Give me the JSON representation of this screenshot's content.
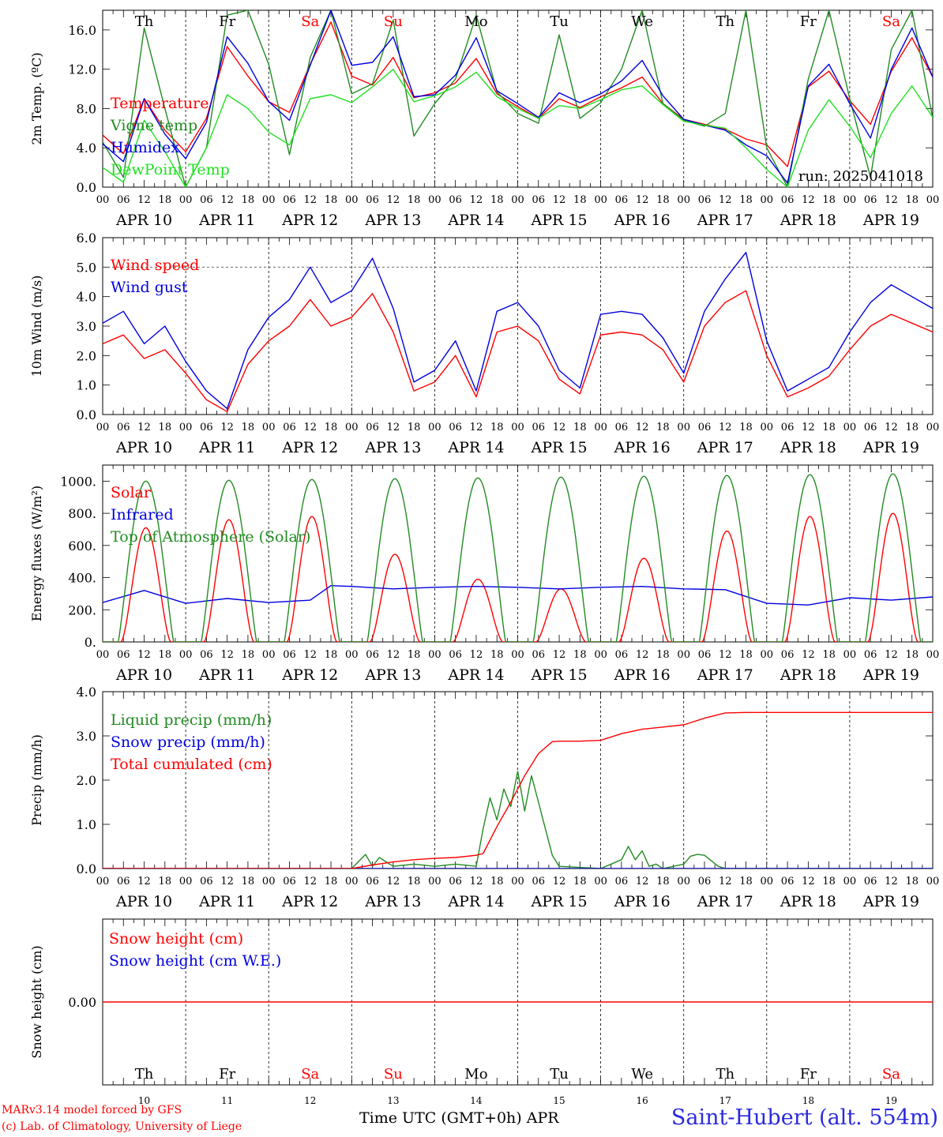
{
  "colors": {
    "temperature": "#ff0000",
    "vigne": "#228b22",
    "humidex": "#0000e0",
    "dewpoint": "#22e022",
    "wind": "#ff0000",
    "gust": "#0000e0",
    "solar": "#ff0000",
    "infrared": "#0000e0",
    "toa": "#228b22",
    "liquid": "#228b22",
    "snowp": "#0000e0",
    "cum": "#ff0000",
    "weekend": "#ff0000",
    "weekday": "#000000"
  },
  "days": [
    "Th",
    "Fr",
    "Sa",
    "Su",
    "Mo",
    "Tu",
    "We",
    "Th",
    "Fr",
    "Sa"
  ],
  "weekend_days": [
    2,
    3,
    9
  ],
  "dates": [
    "APR 10",
    "APR 11",
    "APR 12",
    "APR 13",
    "APR 14",
    "APR 15",
    "APR 16",
    "APR 17",
    "APR 18",
    "APR 19"
  ],
  "day_numbers": [
    "10",
    "11",
    "12",
    "13",
    "14",
    "15",
    "16",
    "17",
    "18",
    "19"
  ],
  "hour_ticks": [
    "00",
    "06",
    "12",
    "18"
  ],
  "footer": {
    "credit_line1": "MARv3.14 model forced by GFS",
    "credit_line2": "(c) Lab. of Climatology, University of Liege",
    "x_axis_label": "Time UTC (GMT+0h) APR",
    "station": "Saint-Hubert (alt. 554m)"
  },
  "chart_data": [
    {
      "type": "line",
      "ylabel": "2m Temp. (ºC)",
      "ylim": [
        0,
        18
      ],
      "yticks": [
        "0.0",
        "4.0",
        "8.0",
        "12.0",
        "16.0"
      ],
      "yticks_values": [
        0,
        4,
        8,
        12,
        16
      ],
      "annotation": "run: 2025041018",
      "x_unit": "hours since APR 10 00 UTC",
      "series": [
        {
          "name": "Temperature",
          "color_key": "temperature",
          "x": [
            0,
            6,
            12,
            18,
            24,
            30,
            36,
            42,
            48,
            54,
            60,
            66,
            72,
            78,
            84,
            90,
            96,
            102,
            108,
            114,
            120,
            126,
            132,
            138,
            144,
            150,
            156,
            162,
            168,
            174,
            180,
            186,
            192,
            198,
            204,
            210,
            216,
            222,
            228,
            234,
            240
          ],
          "y": [
            5.3,
            3.4,
            9.0,
            5.8,
            3.6,
            7.0,
            14.3,
            11.3,
            8.7,
            7.6,
            12.5,
            16.8,
            11.3,
            10.4,
            13.2,
            9.1,
            9.6,
            10.6,
            13.1,
            9.5,
            8.2,
            7.0,
            9.0,
            8.1,
            9.2,
            10.1,
            11.2,
            8.5,
            6.9,
            6.4,
            5.9,
            4.9,
            4.3,
            2.1,
            10.2,
            11.8,
            8.8,
            6.4,
            11.8,
            15.2,
            11.2
          ]
        },
        {
          "name": "Vigne temp",
          "color_key": "vigne",
          "x": [
            0,
            6,
            12,
            18,
            24,
            30,
            36,
            42,
            48,
            54,
            60,
            66,
            72,
            78,
            84,
            90,
            96,
            102,
            108,
            114,
            120,
            126,
            132,
            138,
            144,
            150,
            156,
            162,
            168,
            174,
            180,
            186,
            192,
            198,
            204,
            210,
            216,
            222,
            228,
            234,
            240
          ],
          "y": [
            4.6,
            1.0,
            16.2,
            8.0,
            0.0,
            4.0,
            17.5,
            18.0,
            12.5,
            3.3,
            13.2,
            18.0,
            9.5,
            10.5,
            17.0,
            5.2,
            8.5,
            11.0,
            17.5,
            9.7,
            7.5,
            6.5,
            15.5,
            7.0,
            8.6,
            12.0,
            18.0,
            8.5,
            6.8,
            6.2,
            7.5,
            18.0,
            4.0,
            0.0,
            11.0,
            18.0,
            9.0,
            1.0,
            14.0,
            18.0,
            7.0
          ]
        },
        {
          "name": "Humidex",
          "color_key": "humidex",
          "x": [
            0,
            6,
            12,
            18,
            24,
            30,
            36,
            42,
            48,
            54,
            60,
            66,
            72,
            78,
            84,
            90,
            96,
            102,
            108,
            114,
            120,
            126,
            132,
            138,
            144,
            150,
            156,
            162,
            168,
            174,
            180,
            186,
            192,
            198,
            204,
            210,
            216,
            222,
            228,
            234,
            240
          ],
          "y": [
            4.4,
            2.6,
            9.0,
            5.4,
            2.9,
            6.6,
            15.3,
            12.6,
            8.7,
            6.8,
            12.4,
            18.0,
            12.4,
            12.7,
            15.3,
            9.2,
            9.4,
            11.4,
            15.2,
            9.8,
            8.5,
            7.1,
            9.6,
            8.6,
            9.5,
            10.8,
            12.9,
            9.3,
            6.9,
            6.3,
            5.8,
            4.3,
            3.2,
            0.4,
            10.3,
            12.5,
            8.5,
            5.0,
            12.0,
            16.2,
            11.2
          ]
        },
        {
          "name": "DewPoint Temp",
          "color_key": "dewpoint",
          "x": [
            0,
            6,
            12,
            18,
            24,
            30,
            36,
            42,
            48,
            54,
            60,
            66,
            72,
            78,
            84,
            90,
            96,
            102,
            108,
            114,
            120,
            126,
            132,
            138,
            144,
            150,
            156,
            162,
            168,
            174,
            180,
            186,
            192,
            198,
            204,
            210,
            216,
            222,
            228,
            234,
            240
          ],
          "y": [
            2.0,
            0.5,
            6.8,
            3.6,
            0.0,
            4.0,
            9.4,
            8.0,
            5.6,
            4.3,
            9.0,
            9.4,
            8.6,
            10.2,
            12.0,
            8.7,
            9.3,
            10.2,
            11.7,
            9.2,
            8.0,
            7.0,
            8.3,
            8.0,
            8.9,
            9.9,
            10.3,
            8.4,
            6.7,
            6.3,
            6.0,
            4.0,
            1.8,
            0.0,
            5.8,
            8.9,
            6.2,
            3.0,
            7.5,
            10.3,
            7.1
          ]
        }
      ]
    },
    {
      "type": "line",
      "ylabel": "10m Wind (m/s)",
      "ylim": [
        0,
        6
      ],
      "yticks": [
        "0.0",
        "1.0",
        "2.0",
        "3.0",
        "4.0",
        "5.0",
        "6.0"
      ],
      "yticks_values": [
        0,
        1,
        2,
        3,
        4,
        5,
        6
      ],
      "reference_line": 5.0,
      "x_unit": "hours since APR 10 00 UTC",
      "series": [
        {
          "name": "Wind speed",
          "color_key": "wind",
          "x": [
            0,
            6,
            12,
            18,
            24,
            30,
            36,
            42,
            48,
            54,
            60,
            66,
            72,
            78,
            84,
            90,
            96,
            102,
            108,
            114,
            120,
            126,
            132,
            138,
            144,
            150,
            156,
            162,
            168,
            174,
            180,
            186,
            192,
            198,
            204,
            210,
            216,
            222,
            228,
            234,
            240
          ],
          "y": [
            2.4,
            2.7,
            1.9,
            2.2,
            1.4,
            0.5,
            0.1,
            1.7,
            2.5,
            3.0,
            3.9,
            3.0,
            3.3,
            4.1,
            2.8,
            0.8,
            1.1,
            2.0,
            0.6,
            2.8,
            3.0,
            2.5,
            1.2,
            0.7,
            2.7,
            2.8,
            2.7,
            2.2,
            1.1,
            3.0,
            3.8,
            4.2,
            2.0,
            0.6,
            0.9,
            1.3,
            2.2,
            3.0,
            3.4,
            3.1,
            2.8
          ]
        },
        {
          "name": "Wind gust",
          "color_key": "gust",
          "x": [
            0,
            6,
            12,
            18,
            24,
            30,
            36,
            42,
            48,
            54,
            60,
            66,
            72,
            78,
            84,
            90,
            96,
            102,
            108,
            114,
            120,
            126,
            132,
            138,
            144,
            150,
            156,
            162,
            168,
            174,
            180,
            186,
            192,
            198,
            204,
            210,
            216,
            222,
            228,
            234,
            240
          ],
          "y": [
            3.1,
            3.5,
            2.4,
            3.0,
            1.8,
            0.8,
            0.2,
            2.2,
            3.3,
            3.9,
            5.0,
            3.8,
            4.2,
            5.3,
            3.6,
            1.1,
            1.5,
            2.5,
            0.8,
            3.5,
            3.8,
            3.0,
            1.5,
            0.9,
            3.4,
            3.5,
            3.4,
            2.6,
            1.4,
            3.5,
            4.6,
            5.5,
            2.5,
            0.8,
            1.2,
            1.6,
            2.8,
            3.8,
            4.4,
            4.0,
            3.6
          ]
        }
      ]
    },
    {
      "type": "line",
      "ylabel": "Energy fluxes (W/m²)",
      "ylim": [
        0,
        1100
      ],
      "yticks": [
        "0.",
        "200.",
        "400.",
        "600.",
        "800.",
        "1000."
      ],
      "yticks_values": [
        0,
        200,
        400,
        600,
        800,
        1000
      ],
      "x_unit": "hours since APR 10 00 UTC",
      "series": [
        {
          "name": "Solar",
          "color_key": "solar",
          "daily_peaks": [
            710,
            760,
            780,
            545,
            390,
            330,
            520,
            690,
            780,
            800
          ],
          "peak_hour": 12.5
        },
        {
          "name": "Infrared",
          "color_key": "infrared",
          "x": [
            0,
            12,
            24,
            36,
            48,
            60,
            66,
            72,
            84,
            96,
            108,
            120,
            132,
            144,
            156,
            168,
            180,
            192,
            204,
            216,
            228,
            240
          ],
          "y": [
            245,
            320,
            240,
            270,
            245,
            260,
            350,
            345,
            330,
            340,
            345,
            340,
            330,
            340,
            345,
            330,
            325,
            240,
            230,
            275,
            260,
            280
          ]
        },
        {
          "name": "Top of Atmosphere (Solar)",
          "color_key": "toa",
          "daily_peaks": [
            1000,
            1005,
            1010,
            1015,
            1020,
            1025,
            1030,
            1035,
            1040,
            1045
          ],
          "peak_hour": 12.5
        }
      ]
    },
    {
      "type": "line",
      "ylabel": "Precip (mm/h)",
      "ylim": [
        0,
        4
      ],
      "yticks": [
        "0.0",
        "1.0",
        "2.0",
        "3.0",
        "4.0"
      ],
      "yticks_values": [
        0,
        1,
        2,
        3,
        4
      ],
      "x_unit": "hours since APR 10 00 UTC",
      "series": [
        {
          "name": "Liquid precip (mm/h)",
          "color_key": "liquid",
          "x": [
            0,
            60,
            72,
            76,
            78,
            80,
            84,
            90,
            96,
            102,
            108,
            110,
            112,
            114,
            116,
            118,
            120,
            122,
            124,
            126,
            128,
            130,
            132,
            144,
            150,
            152,
            154,
            156,
            158,
            160,
            162,
            168,
            170,
            172,
            174,
            178,
            180,
            186,
            192,
            240
          ],
          "y": [
            0,
            0,
            0,
            0.32,
            0.05,
            0.25,
            0.05,
            0.1,
            0.05,
            0.1,
            0.05,
            0.9,
            1.6,
            1.1,
            1.8,
            1.4,
            2.2,
            1.3,
            2.1,
            1.5,
            0.9,
            0.3,
            0.05,
            0,
            0.2,
            0.5,
            0.2,
            0.4,
            0.05,
            0.1,
            0,
            0.1,
            0.28,
            0.32,
            0.3,
            0.05,
            0,
            0,
            0,
            0
          ]
        },
        {
          "name": "Snow precip (mm/h)",
          "color_key": "snowp",
          "x": [
            0,
            240
          ],
          "y": [
            0,
            0
          ]
        },
        {
          "name": "Total cumulated (cm)",
          "color_key": "cum",
          "x": [
            0,
            72,
            78,
            84,
            90,
            96,
            102,
            108,
            110,
            114,
            118,
            122,
            126,
            130,
            132,
            138,
            144,
            150,
            156,
            162,
            168,
            174,
            180,
            186,
            192,
            240
          ],
          "y": [
            0,
            0,
            0.08,
            0.15,
            0.2,
            0.23,
            0.25,
            0.3,
            0.34,
            0.95,
            1.5,
            2.1,
            2.6,
            2.87,
            2.88,
            2.88,
            2.9,
            3.05,
            3.15,
            3.2,
            3.25,
            3.4,
            3.52,
            3.53,
            3.53,
            3.53
          ]
        }
      ]
    },
    {
      "type": "line",
      "ylabel": "Snow height (cm)",
      "ylim": [
        -1,
        1
      ],
      "yticks": [
        "0.00"
      ],
      "yticks_values": [
        0
      ],
      "x_unit": "hours since APR 10 00 UTC",
      "series": [
        {
          "name": "Snow height (cm)",
          "color_key": "cum",
          "x": [
            0,
            240
          ],
          "y": [
            0,
            0
          ]
        },
        {
          "name": "Snow height (cm W.E.)",
          "color_key": "snowp",
          "x": [],
          "y": []
        }
      ]
    }
  ]
}
